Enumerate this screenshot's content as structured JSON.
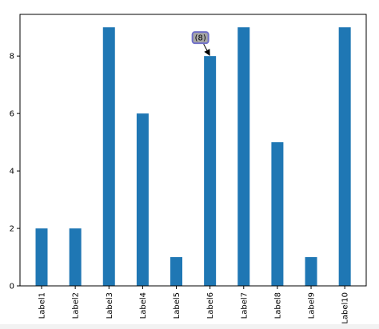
{
  "chart_data": {
    "type": "bar",
    "title": "",
    "xlabel": "",
    "ylabel": "",
    "categories": [
      "Label1",
      "Label2",
      "Label3",
      "Label4",
      "Label5",
      "Label6",
      "Label7",
      "Label8",
      "Label9",
      "Label10"
    ],
    "values": [
      2,
      2,
      9,
      6,
      1,
      8,
      9,
      5,
      1,
      9
    ],
    "ylim": [
      0,
      9.45
    ],
    "yticks": [
      "0",
      "2",
      "4",
      "6",
      "8"
    ],
    "grid": false,
    "bar_color": "#1f77b4",
    "annotation": {
      "text": "(8)",
      "target_category": "Label6",
      "target_value": 8,
      "box_face_color": "#a6a6a6",
      "box_edge_color": "#6f6fc8"
    }
  }
}
